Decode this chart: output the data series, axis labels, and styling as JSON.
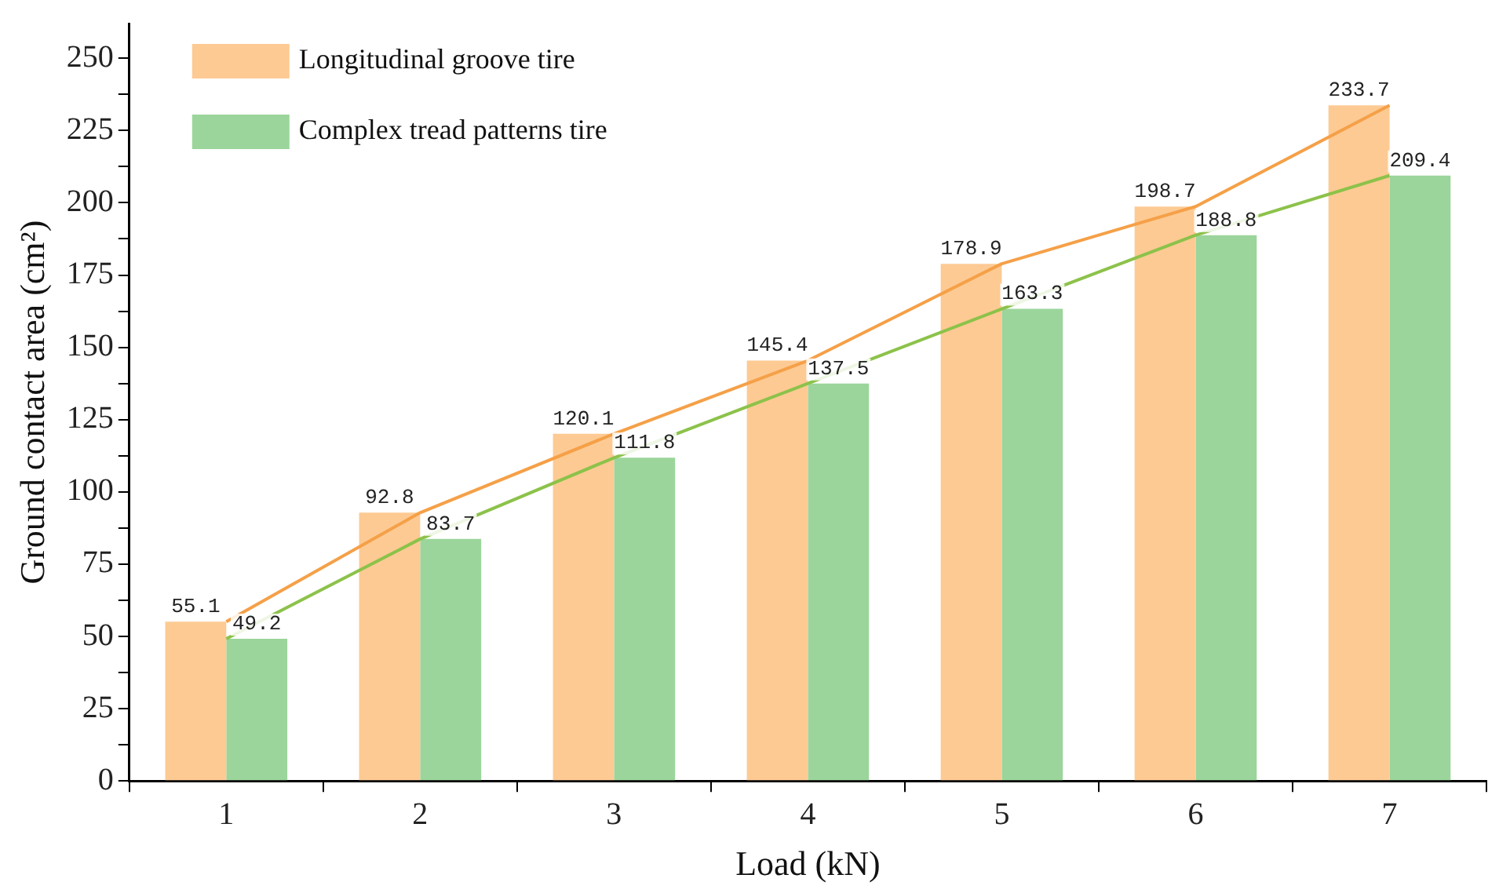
{
  "chart_data": {
    "type": "bar",
    "xlabel": "Load (kN)",
    "ylabel": "Ground contact area (cm²)",
    "categories": [
      "1",
      "2",
      "3",
      "4",
      "5",
      "6",
      "7"
    ],
    "series": [
      {
        "name": "Longitudinal groove tire",
        "color": "#fdca93",
        "values": [
          55.1,
          92.8,
          120.1,
          145.4,
          178.9,
          198.7,
          233.7
        ],
        "value_labels": [
          "55.1",
          "92.8",
          "120.1",
          "145.4",
          "178.9",
          "198.7",
          "233.7"
        ]
      },
      {
        "name": "Complex tread patterns tire",
        "color": "#9bd59b",
        "values": [
          49.2,
          83.7,
          111.8,
          137.5,
          163.3,
          188.8,
          209.4
        ],
        "value_labels": [
          "49.2",
          "83.7",
          "111.8",
          "137.5",
          "163.3",
          "188.8",
          "209.4"
        ]
      },
      {
        "type": "line",
        "color": "#f5a048",
        "values": [
          55.1,
          92.8,
          120.1,
          145.4,
          178.9,
          198.7,
          233.7
        ]
      },
      {
        "type": "line",
        "color": "#8cc24a",
        "values": [
          49.2,
          83.7,
          111.8,
          137.5,
          163.3,
          188.8,
          209.4
        ]
      }
    ],
    "ylim": [
      0,
      262
    ],
    "yticks": [
      0,
      {
        "value": 12.5,
        "label": null
      },
      25,
      {
        "value": 37.5,
        "label": null
      },
      50,
      {
        "value": 62.5,
        "label": null
      },
      75,
      {
        "value": 87.5,
        "label": null
      },
      100,
      {
        "value": 112.5,
        "label": null
      },
      125,
      {
        "value": 137.5,
        "label": null
      },
      150,
      {
        "value": 162.5,
        "label": null
      },
      175,
      {
        "value": 187.5,
        "label": null
      },
      200,
      {
        "value": 212.5,
        "label": null
      },
      225,
      {
        "value": 237.5,
        "label": null
      },
      250
    ],
    "grid": false,
    "legend": "top left",
    "marker": "none",
    "line_style": "solid"
  }
}
